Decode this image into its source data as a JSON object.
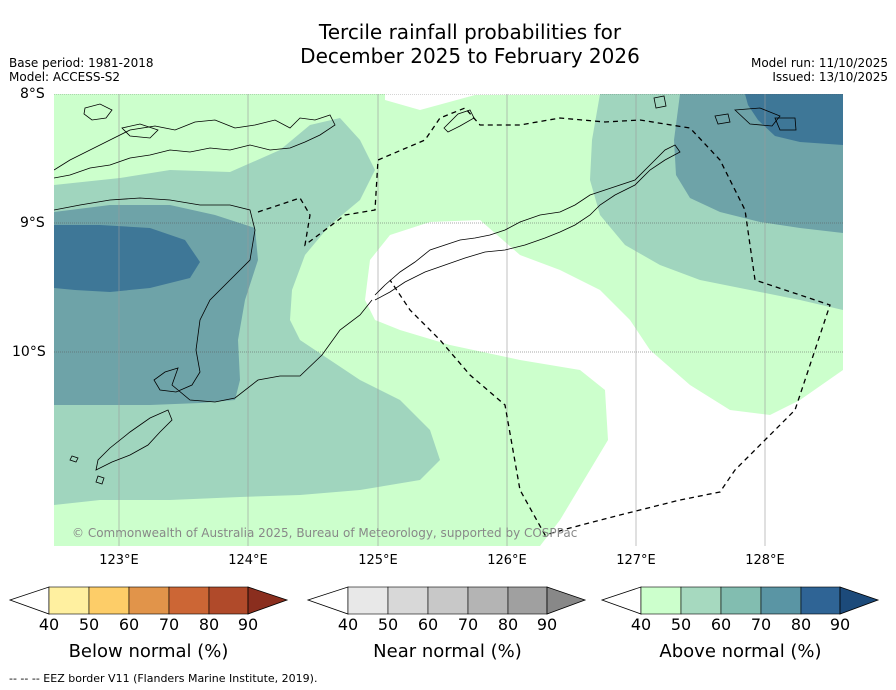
{
  "title_line1": "Tercile rainfall probabilities for",
  "title_line2": "December 2025 to February 2026",
  "base_period": "Base period: 1981-2018",
  "model": "Model: ACCESS-S2",
  "model_run": "Model run: 11/10/2025",
  "issued": "Issued: 13/10/2025",
  "lat_labels": [
    "8°S",
    "9°S",
    "10°S"
  ],
  "lon_labels": [
    "123°E",
    "124°E",
    "125°E",
    "126°E",
    "127°E",
    "128°E"
  ],
  "copyright": "© Commonwealth of Australia 2025, Bureau of Meteorology, supported by COSPPac",
  "colorbars": {
    "below": {
      "title": "Below normal (%)",
      "ticks": [
        "40",
        "50",
        "60",
        "70",
        "80",
        "90"
      ],
      "colors": [
        "#ffffff",
        "#fff0a0",
        "#fdcd68",
        "#e1944a",
        "#cc6635",
        "#b04a2a",
        "#8a2e1e"
      ]
    },
    "near": {
      "title": "Near normal (%)",
      "ticks": [
        "40",
        "50",
        "60",
        "70",
        "80",
        "90"
      ],
      "colors": [
        "#ffffff",
        "#e8e8e8",
        "#d8d8d8",
        "#c8c8c8",
        "#b4b4b4",
        "#a0a0a0",
        "#888888"
      ]
    },
    "above": {
      "title": "Above normal (%)",
      "ticks": [
        "40",
        "50",
        "60",
        "70",
        "80",
        "90"
      ],
      "colors": [
        "#ffffff",
        "#ccffcc",
        "#a6d9bf",
        "#82bdb0",
        "#5a95a4",
        "#2f6495",
        "#1c4a7a"
      ]
    }
  },
  "footnote": "-- -- -- EEZ border V11 (Flanders Marine Institute, 2019).",
  "map_colors": {
    "above_40_50": "#ccffcc",
    "above_50_60": "#a0d5be",
    "above_60_70": "#6ea3a8",
    "above_70_80": "#3e7797"
  }
}
